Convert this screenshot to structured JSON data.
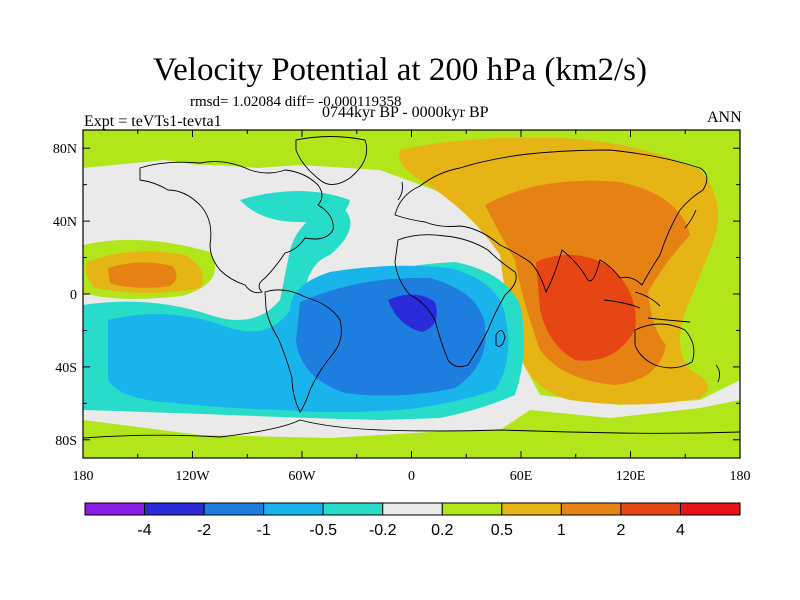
{
  "plot": {
    "title": "Velocity Potential at 200 hPa (km2/s)",
    "stats": "rmsd= 1.02084 diff= -0.000119358",
    "experiment": "Expt = teVTs1-tevta1",
    "period": "0744kyr BP - 0000kyr BP",
    "season": "ANN"
  },
  "axes": {
    "lon_labels": [
      "180",
      "120W",
      "60W",
      "0",
      "60E",
      "120E",
      "180"
    ],
    "lat_labels": [
      "80N",
      "40N",
      "0",
      "40S",
      "80S"
    ],
    "lon_range": [
      -180,
      180
    ],
    "lat_range": [
      -90,
      90
    ]
  },
  "colorbar": {
    "colors": [
      "#8a1ee6",
      "#2a2ad8",
      "#1e7ee0",
      "#19b4ec",
      "#27dcc8",
      "#eaeaea",
      "#b2e61a",
      "#e6b414",
      "#e68214",
      "#e64614",
      "#e61414"
    ],
    "labels": [
      "-4",
      "-2",
      "-1",
      "-0.5",
      "-0.2",
      "0.2",
      "0.5",
      "1",
      "2",
      "4"
    ]
  },
  "colors": {
    "frame": "#000000",
    "coastline": "#000000",
    "background": "#ffffff"
  }
}
